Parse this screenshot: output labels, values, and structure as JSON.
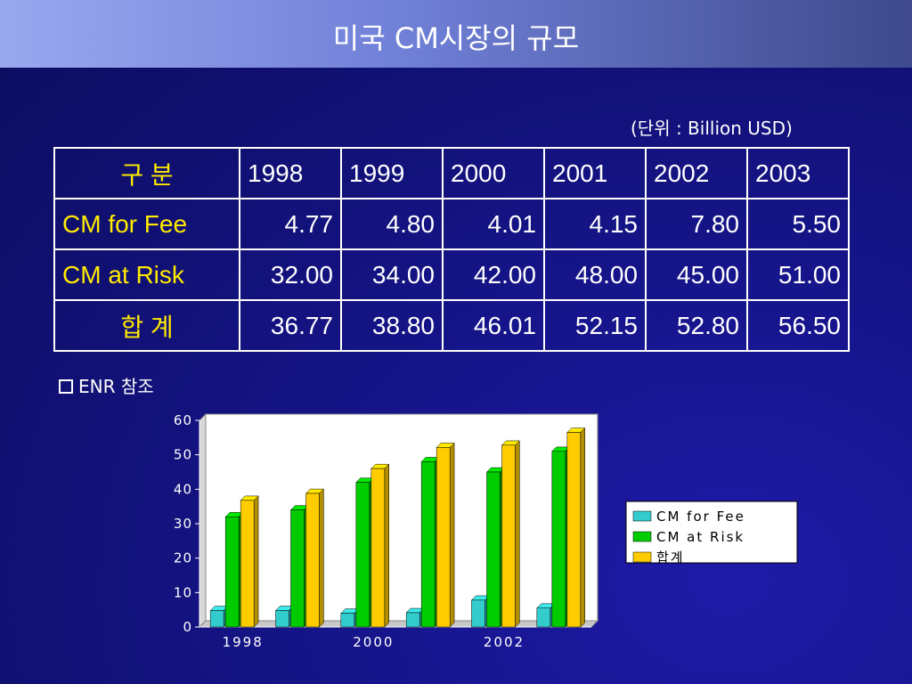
{
  "title": "미국 CM시장의 규모",
  "unit_note": "(단위 : Billion USD)",
  "table": {
    "header": [
      "구  분",
      "1998",
      "1999",
      "2000",
      "2001",
      "2002",
      "2003"
    ],
    "rows": [
      {
        "label": "CM for Fee",
        "values": [
          "4.77",
          "4.80",
          "4.01",
          "4.15",
          "7.80",
          "5.50"
        ]
      },
      {
        "label": "CM at Risk",
        "values": [
          "32.00",
          "34.00",
          "42.00",
          "48.00",
          "45.00",
          "51.00"
        ]
      },
      {
        "label": "합 계",
        "values": [
          "36.77",
          "38.80",
          "46.01",
          "52.15",
          "52.80",
          "56.50"
        ]
      }
    ]
  },
  "source_note": "ENR 참조",
  "chart_data": {
    "type": "bar",
    "categories": [
      "1998",
      "1999",
      "2000",
      "2001",
      "2002",
      "2003"
    ],
    "x_tick_labels": [
      "1998",
      "",
      "2000",
      "",
      "2002",
      ""
    ],
    "series": [
      {
        "name": "CM for Fee",
        "color": "#33cccc",
        "values": [
          4.77,
          4.8,
          4.01,
          4.15,
          7.8,
          5.5
        ]
      },
      {
        "name": "CM at Risk",
        "color": "#00cc00",
        "values": [
          32.0,
          34.0,
          42.0,
          48.0,
          45.0,
          51.0
        ]
      },
      {
        "name": "합계",
        "color": "#ffcc00",
        "values": [
          36.77,
          38.8,
          46.01,
          52.15,
          52.8,
          56.5
        ]
      }
    ],
    "ylim": [
      0,
      60
    ],
    "yticks": [
      0,
      10,
      20,
      30,
      40,
      50,
      60
    ],
    "legend_position": "right",
    "grid": false
  }
}
